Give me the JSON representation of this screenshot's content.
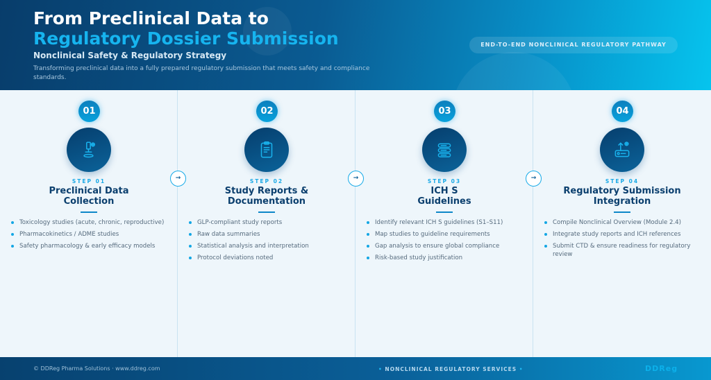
{
  "header": {
    "title_line1": "From Preclinical Data to",
    "title_line2": "Regulatory Dossier Submission",
    "subtitle": "Nonclinical Safety & Regulatory Strategy",
    "description": "Transforming preclinical data into a fully prepared regulatory submission that meets safety and compliance standards.",
    "pill": "END-TO-END NONCLINICAL REGULATORY PATHWAY"
  },
  "colors": {
    "accent": "#16b4ef",
    "dark": "#0b3f6e"
  },
  "steps": [
    {
      "num": "01",
      "step": "STEP 01",
      "title1": "Preclinical Data",
      "title2": "Collection",
      "icon": "microscope-icon",
      "items": [
        "Toxicology studies (acute, chronic, reproductive)",
        "Pharmacokinetics / ADME studies",
        "Safety pharmacology & early efficacy models"
      ]
    },
    {
      "num": "02",
      "step": "STEP 02",
      "title1": "Study Reports &",
      "title2": "Documentation",
      "icon": "clipboard-icon",
      "items": [
        "GLP-compliant study reports",
        "Raw data summaries",
        "Statistical analysis and interpretation",
        "Protocol deviations noted"
      ]
    },
    {
      "num": "03",
      "step": "STEP 03",
      "title1": "ICH S",
      "title2": "Guidelines",
      "icon": "server-stack-icon",
      "items": [
        "Identify relevant ICH S guidelines (S1–S11)",
        "Map studies to guideline requirements",
        "Gap analysis to ensure global compliance",
        "Risk-based study justification"
      ]
    },
    {
      "num": "04",
      "step": "STEP 04",
      "title1": "Regulatory Submission",
      "title2": "Integration",
      "icon": "upload-icon",
      "items": [
        "Compile Nonclinical Overview (Module 2.4)",
        "Integrate study reports and ICH references",
        "Submit CTD & ensure readiness for regulatory review"
      ]
    }
  ],
  "arrow_glyph": "→",
  "footer": {
    "copyright": "© DDReg Pharma Solutions · www.ddreg.com",
    "services": "NONCLINICAL REGULATORY SERVICES",
    "dot": "•",
    "brand": "DDReg"
  }
}
